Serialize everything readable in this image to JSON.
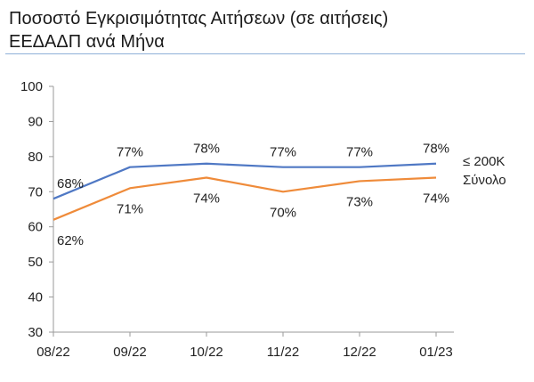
{
  "chart_data": {
    "type": "line",
    "title_line1": "Ποσοστό Εγκρισιμότητας Αιτήσεων (σε αιτήσεις)",
    "title_line2": "ΕΕΔΑΔΠ ανά Μήνα",
    "categories": [
      "08/22",
      "09/22",
      "10/22",
      "11/22",
      "12/22",
      "01/23"
    ],
    "ylim": [
      30,
      100
    ],
    "yticks": [
      30,
      40,
      50,
      60,
      70,
      80,
      90,
      100
    ],
    "grid": false,
    "legend_position": "right",
    "series": [
      {
        "name": "≤ 200K",
        "color": "#4f78c4",
        "values": [
          68,
          77,
          78,
          77,
          77,
          78
        ],
        "labels": [
          "68%",
          "77%",
          "78%",
          "77%",
          "77%",
          "78%"
        ]
      },
      {
        "name": "Σύνολο",
        "color": "#ef8b3a",
        "values": [
          62,
          71,
          74,
          70,
          73,
          74
        ],
        "labels": [
          "62%",
          "71%",
          "74%",
          "70%",
          "73%",
          "74%"
        ]
      }
    ]
  }
}
